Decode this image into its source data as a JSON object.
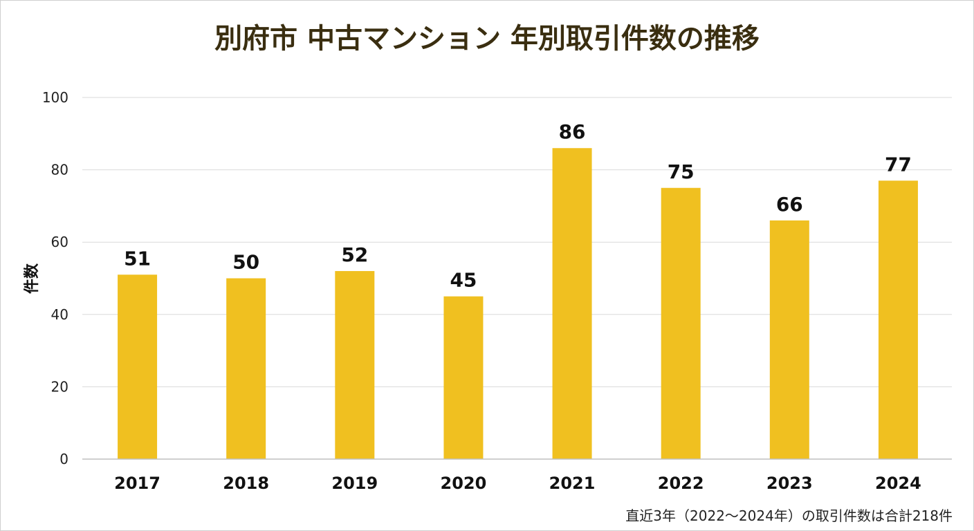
{
  "colors": {
    "bar": "#f0c020",
    "title": "#3a2e10",
    "grid": "#d9d9d9"
  },
  "chart_data": {
    "type": "bar",
    "title": "別府市 中古マンション 年別取引件数の推移",
    "ylabel": "件数",
    "xlabel": "",
    "categories": [
      "2017",
      "2018",
      "2019",
      "2020",
      "2021",
      "2022",
      "2023",
      "2024"
    ],
    "values": [
      51,
      50,
      52,
      45,
      86,
      75,
      66,
      77
    ],
    "data_labels": [
      "51",
      "50",
      "52",
      "45",
      "86",
      "75",
      "66",
      "77"
    ],
    "ylim": [
      0,
      100
    ],
    "yticks": [
      0,
      20,
      40,
      60,
      80,
      100
    ],
    "grid": true,
    "legend": "none",
    "annotation": "直近3年（2022〜2024年）の取引件数は合計218件"
  }
}
